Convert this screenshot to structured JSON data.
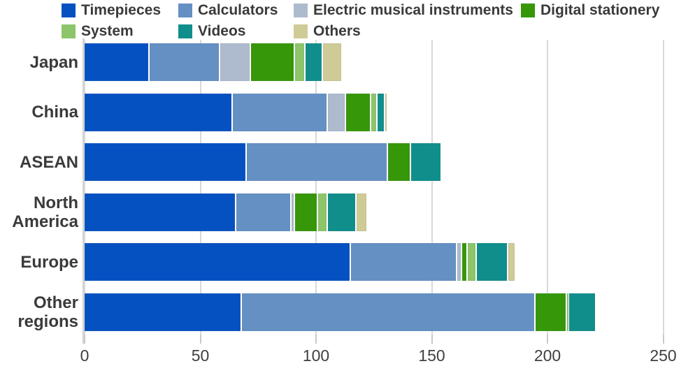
{
  "chart_data": {
    "type": "bar",
    "orientation": "horizontal",
    "stacked": true,
    "title": "",
    "xlabel": "",
    "ylabel": "",
    "xlim": [
      0,
      250
    ],
    "x_ticks": [
      0,
      50,
      100,
      150,
      200,
      250
    ],
    "grid": "vertical",
    "legend_position": "top",
    "categories": [
      "Japan",
      "China",
      "ASEAN",
      "North America",
      "Europe",
      "Other regions"
    ],
    "series": [
      {
        "name": "Timepieces",
        "color": "#0551c2",
        "values": [
          28,
          64,
          70,
          65.5,
          115,
          68
        ]
      },
      {
        "name": "Calculators",
        "color": "#6490c4",
        "values": [
          30.5,
          41,
          61,
          24,
          46,
          127
        ]
      },
      {
        "name": "Electric musical instruments",
        "color": "#aebacd",
        "values": [
          13.5,
          8,
          0,
          1.5,
          2,
          0
        ]
      },
      {
        "name": "Digital stationery",
        "color": "#369709",
        "values": [
          19,
          11,
          10,
          10,
          2.5,
          13.5
        ]
      },
      {
        "name": "System",
        "color": "#8cc56a",
        "values": [
          4.5,
          2.5,
          0,
          4,
          4,
          1
        ]
      },
      {
        "name": "Videos",
        "color": "#0f8e8b",
        "values": [
          7.5,
          3.5,
          13.5,
          12.5,
          13.5,
          11.5
        ]
      },
      {
        "name": "Others",
        "color": "#cecb97",
        "values": [
          8.5,
          1,
          0,
          5,
          3.5,
          0
        ]
      }
    ],
    "totals": [
      111.5,
      131,
      154.5,
      122.5,
      186.5,
      221
    ]
  },
  "colors": {
    "gridline": "#d9d9d9",
    "axis_line": "#d2d2d2",
    "text": "#3a3a3a"
  }
}
